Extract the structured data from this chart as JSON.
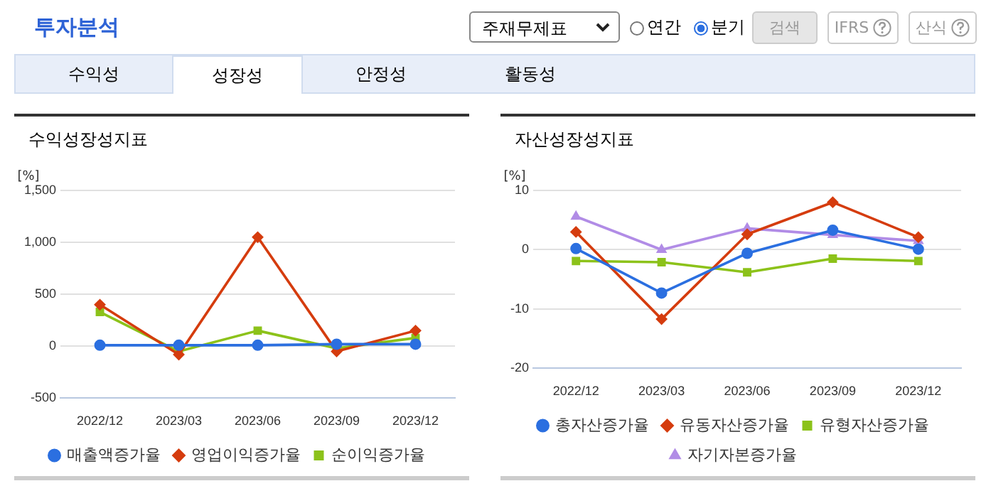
{
  "chart_data": [
    {
      "type": "other",
      "title": "투자분석",
      "annotations": [
        "주재무제표",
        "연간",
        "분기",
        "검색",
        "IFRS",
        "산식",
        "수익성",
        "성장성",
        "안정성",
        "활동성"
      ]
    },
    {
      "type": "line",
      "title": "수익성장성지표",
      "ylabel": "[%]",
      "categories": [
        "2022/12",
        "2023/03",
        "2023/06",
        "2023/09",
        "2023/12"
      ],
      "ylim": [
        -500,
        1500
      ],
      "yticks": [
        -500,
        0,
        500,
        {
          "value": 1000,
          "label": "1,000"
        },
        {
          "value": 1500,
          "label": "1,500"
        }
      ],
      "grid": "y",
      "legend": "bottom",
      "series": [
        {
          "name": "매출액증가율",
          "color": "#2b6fe0",
          "marker": "circle",
          "values": [
            10,
            10,
            10,
            20,
            20
          ]
        },
        {
          "name": "영업이익증가율",
          "color": "#d53c0e",
          "marker": "diamond",
          "values": [
            400,
            -80,
            1050,
            -50,
            150
          ]
        },
        {
          "name": "순이익증가율",
          "color": "#8cc21a",
          "marker": "square",
          "values": [
            330,
            -50,
            150,
            -20,
            80
          ]
        }
      ]
    },
    {
      "type": "line",
      "title": "자산성장성지표",
      "ylabel": "[%]",
      "categories": [
        "2022/12",
        "2023/03",
        "2023/06",
        "2023/09",
        "2023/12"
      ],
      "ylim": [
        -20,
        10
      ],
      "yticks": [
        -20,
        -10,
        0,
        10
      ],
      "grid": "y",
      "legend": "bottom",
      "series": [
        {
          "name": "총자산증가율",
          "color": "#2b6fe0",
          "marker": "circle",
          "values": [
            0.2,
            -7.3,
            -0.6,
            3.3,
            0.1
          ]
        },
        {
          "name": "유동자산증가율",
          "color": "#d53c0e",
          "marker": "diamond",
          "values": [
            3.0,
            -11.7,
            2.6,
            8.0,
            2.1
          ]
        },
        {
          "name": "유형자산증가율",
          "color": "#8cc21a",
          "marker": "square",
          "values": [
            -1.9,
            -2.1,
            -3.8,
            -1.5,
            -1.9
          ]
        },
        {
          "name": "자기자본증가율",
          "color": "#b18ce6",
          "marker": "triangle",
          "values": [
            5.6,
            0,
            3.6,
            2.5,
            1.5
          ]
        }
      ]
    }
  ]
}
